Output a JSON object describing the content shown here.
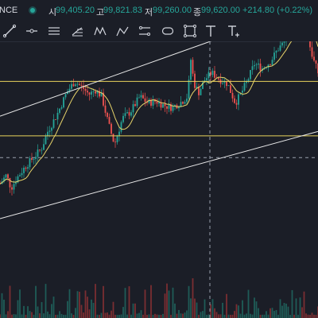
{
  "header": {
    "symbol_fragment": "NCE",
    "status_color": "#26a69a",
    "open_label": "시",
    "open_value": "99,405.20",
    "high_label": "고",
    "high_value": "99,821.83",
    "low_label": "저",
    "low_value": "99,260.00",
    "close_label": "종",
    "close_value": "99,620.00",
    "change_value": "+214.80 (+0.22%)",
    "up_color": "#26a69a"
  },
  "toolbar": {
    "tools": [
      {
        "name": "trend-line-tool",
        "icon": "trend-line-icon"
      },
      {
        "name": "horizontal-ray-tool",
        "icon": "horizontal-ray-icon"
      },
      {
        "name": "parallel-channel-tool",
        "icon": "parallel-channel-icon"
      },
      {
        "name": "fib-retracement-tool",
        "icon": "fib-retracement-icon"
      },
      {
        "name": "xabcd-pattern-tool",
        "icon": "xabcd-pattern-icon"
      },
      {
        "name": "abcd-pattern-tool",
        "icon": "abcd-pattern-icon"
      },
      {
        "name": "long-position-tool",
        "icon": "long-position-icon"
      },
      {
        "name": "price-range-tool",
        "icon": "price-range-icon"
      },
      {
        "name": "rectangle-tool",
        "icon": "rectangle-icon"
      },
      {
        "name": "text-tool",
        "icon": "text-icon"
      },
      {
        "name": "text-note-tool",
        "icon": "text-note-icon"
      }
    ],
    "abcd_label": "ABCD",
    "xabcd_label": "XABCD"
  },
  "chart_data": {
    "type": "candlestick",
    "colors": {
      "up": "#26a69a",
      "down": "#ef5350",
      "ma": "#e6d36a",
      "support_resistance": "#e8d35c",
      "trendline": "#e8e8e8",
      "crosshair": "#9aa0ad",
      "background": "#1b1e27"
    },
    "seed": 7,
    "price_path": [
      [
        0,
        96.2
      ],
      [
        8,
        96.6
      ],
      [
        14,
        96.0
      ],
      [
        22,
        96.5
      ],
      [
        32,
        97.0
      ],
      [
        42,
        97.4
      ],
      [
        52,
        97.8
      ],
      [
        60,
        98.6
      ],
      [
        72,
        99.4
      ],
      [
        84,
        100.4
      ],
      [
        94,
        100.9
      ],
      [
        104,
        100.6
      ],
      [
        112,
        100.3
      ],
      [
        120,
        100.5
      ],
      [
        128,
        100.2
      ],
      [
        136,
        99.0
      ],
      [
        144,
        98.0
      ],
      [
        154,
        99.2
      ],
      [
        164,
        99.5
      ],
      [
        176,
        100.2
      ],
      [
        186,
        99.9
      ],
      [
        196,
        100.0
      ],
      [
        206,
        99.8
      ],
      [
        216,
        99.7
      ],
      [
        226,
        99.9
      ],
      [
        236,
        100.2
      ],
      [
        240,
        101.9
      ],
      [
        244,
        100.8
      ],
      [
        250,
        100.4
      ],
      [
        258,
        101.0
      ],
      [
        266,
        101.3
      ],
      [
        276,
        101.0
      ],
      [
        286,
        100.8
      ],
      [
        296,
        99.9
      ],
      [
        304,
        100.4
      ],
      [
        312,
        101.0
      ],
      [
        320,
        101.7
      ],
      [
        330,
        101.5
      ],
      [
        340,
        101.8
      ],
      [
        350,
        102.4
      ],
      [
        360,
        102.8
      ],
      [
        370,
        103.4
      ],
      [
        378,
        103.9
      ],
      [
        386,
        103.1
      ],
      [
        394,
        101.9
      ],
      [
        400,
        101.3
      ]
    ],
    "support_level": 98.4,
    "resistance_level": 100.9,
    "crosshair_level": 97.4,
    "trend_lines": [
      {
        "from": [
          0,
          99.3
        ],
        "to": [
          385,
          104.3
        ]
      },
      {
        "from": [
          0,
          94.6
        ],
        "to": [
          400,
          98.6
        ]
      }
    ]
  }
}
